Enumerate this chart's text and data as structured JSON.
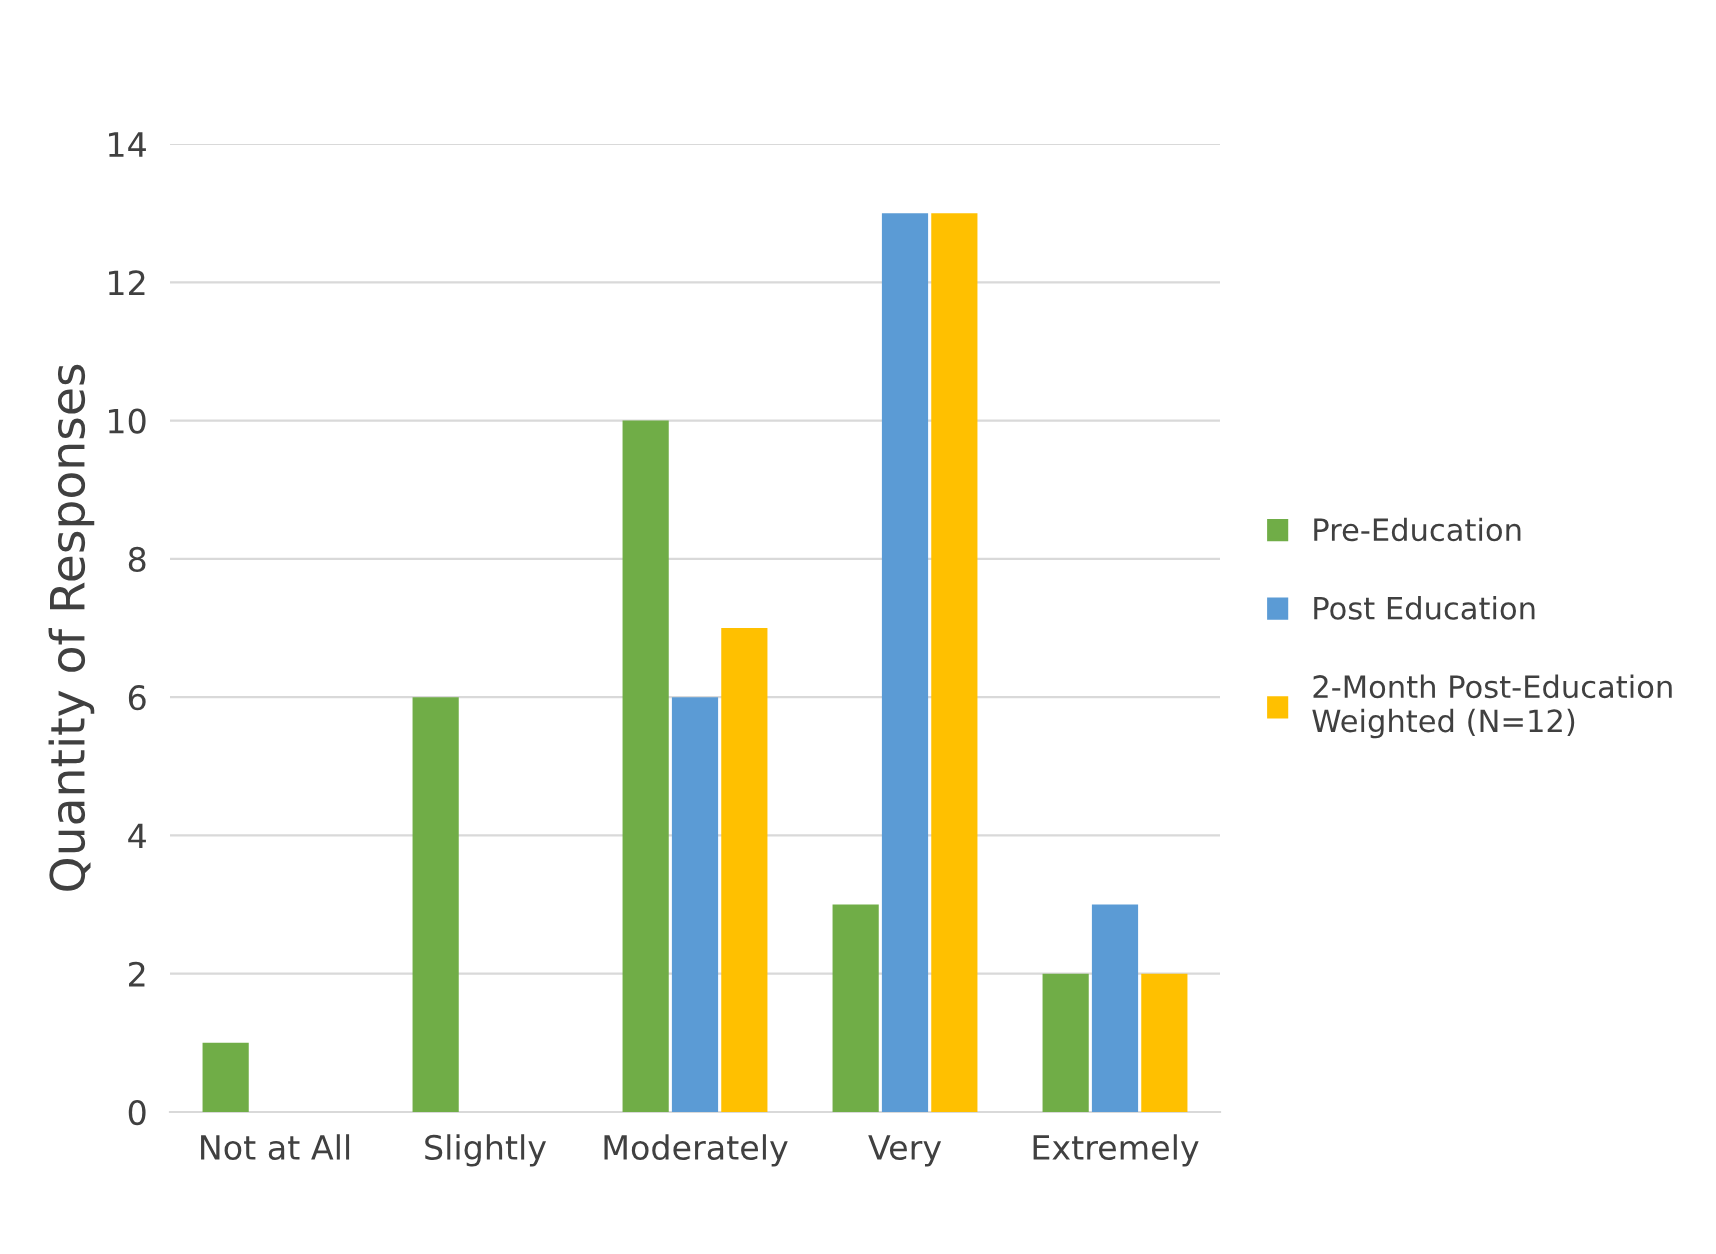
{
  "chart_data": {
    "type": "bar",
    "ylabel": "Quantity of Responses",
    "categories": [
      "Not at All",
      "Slightly",
      "Moderately",
      "Very",
      "Extremely"
    ],
    "series": [
      {
        "name": "Pre-Education",
        "color": "#70ad47",
        "values": [
          1,
          6,
          10,
          3,
          2
        ]
      },
      {
        "name": "Post Education",
        "color": "#5b9bd5",
        "values": [
          0,
          0,
          6,
          13,
          3
        ]
      },
      {
        "name": "2-Month Post-Education Weighted (N=12)",
        "color": "#ffc000",
        "values": [
          0,
          0,
          7,
          13,
          2
        ]
      }
    ],
    "ylim": [
      0,
      14
    ],
    "yticks": [
      0,
      2,
      4,
      6,
      8,
      10,
      12,
      14
    ],
    "grid": "y",
    "legend": "right"
  }
}
